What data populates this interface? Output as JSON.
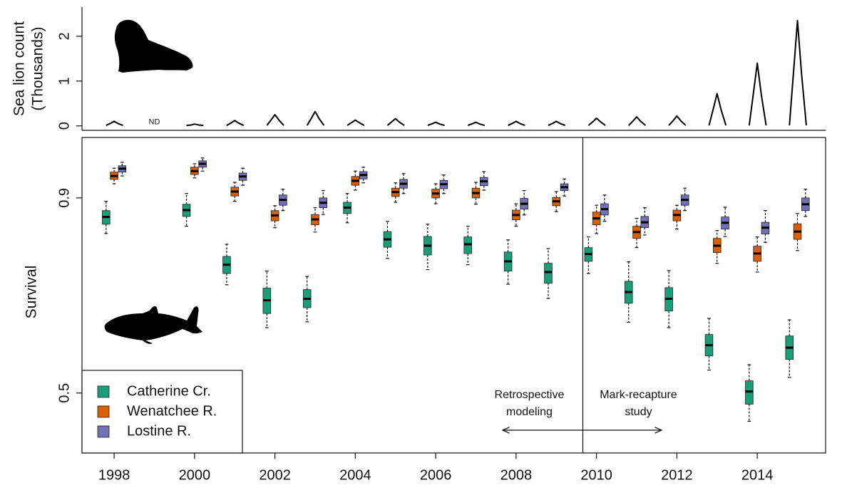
{
  "chart_data": [
    {
      "type": "line",
      "ylabel": [
        "Sea lion count",
        "(Thousands)"
      ],
      "x": [
        1997.8,
        1997.92,
        1998,
        1998.1,
        1998.22,
        1998.5,
        1999.8,
        1999.92,
        2000,
        2000.1,
        2000.22,
        2000.5,
        2000.8,
        2000.92,
        2001,
        2001.1,
        2001.22,
        2001.5,
        2001.8,
        2001.92,
        2002,
        2002.1,
        2002.22,
        2002.5,
        2002.8,
        2002.92,
        2003,
        2003.1,
        2003.22,
        2003.5,
        2003.8,
        2003.92,
        2004,
        2004.1,
        2004.22,
        2004.5,
        2004.8,
        2004.92,
        2005,
        2005.1,
        2005.22,
        2005.5,
        2005.8,
        2005.92,
        2006,
        2006.1,
        2006.22,
        2006.5,
        2006.8,
        2006.92,
        2007,
        2007.1,
        2007.22,
        2007.5,
        2007.8,
        2007.92,
        2008,
        2008.1,
        2008.22,
        2008.5,
        2008.8,
        2008.92,
        2009,
        2009.1,
        2009.22,
        2009.5,
        2009.8,
        2009.92,
        2010,
        2010.1,
        2010.22,
        2010.5,
        2010.8,
        2010.92,
        2011,
        2011.1,
        2011.22,
        2011.5,
        2011.8,
        2011.92,
        2012,
        2012.1,
        2012.22,
        2012.5,
        2012.8,
        2012.92,
        2013,
        2013.1,
        2013.22,
        2013.5,
        2013.8,
        2013.92,
        2014,
        2014.1,
        2014.22,
        2014.5,
        2014.8,
        2014.92,
        2015,
        2015.1,
        2015.22
      ],
      "values": [
        0.01,
        0.06,
        0.1,
        0.05,
        0.01,
        null,
        0.01,
        0.02,
        0.04,
        0.02,
        0.01,
        null,
        0.01,
        0.07,
        0.12,
        0.06,
        0.01,
        null,
        0.01,
        0.15,
        0.25,
        0.13,
        0.01,
        null,
        0.01,
        0.19,
        0.32,
        0.16,
        0.01,
        null,
        0.01,
        0.08,
        0.13,
        0.07,
        0.01,
        null,
        0.01,
        0.1,
        0.16,
        0.08,
        0.01,
        null,
        0.01,
        0.05,
        0.08,
        0.04,
        0.01,
        null,
        0.01,
        0.05,
        0.08,
        0.04,
        0.01,
        null,
        0.01,
        0.06,
        0.1,
        0.05,
        0.01,
        null,
        0.01,
        0.06,
        0.1,
        0.05,
        0.01,
        null,
        0.01,
        0.1,
        0.17,
        0.09,
        0.01,
        null,
        0.01,
        0.12,
        0.2,
        0.1,
        0.01,
        null,
        0.01,
        0.13,
        0.22,
        0.11,
        0.01,
        null,
        0.01,
        0.43,
        0.72,
        0.36,
        0.01,
        null,
        0.01,
        0.84,
        1.4,
        0.7,
        0.01,
        null,
        0.01,
        1.41,
        2.35,
        1.18,
        0.01
      ],
      "color": "#000000",
      "xlim": [
        1997.2,
        2015.7
      ],
      "ylim": [
        -0.1,
        2.65
      ],
      "yticks": [
        0,
        1,
        2
      ],
      "missing": {
        "label": "ND",
        "x": 1999
      }
    },
    {
      "type": "box",
      "ylabel": "Survival",
      "x": [
        1998,
        2000,
        2001,
        2002,
        2003,
        2004,
        2005,
        2006,
        2007,
        2008,
        2009,
        2010,
        2011,
        2012,
        2013,
        2014,
        2015
      ],
      "series": [
        {
          "name": "Catherine Cr.",
          "color": "#1b9e77",
          "median": [
            0.861,
            0.875,
            0.763,
            0.69,
            0.693,
            0.88,
            0.815,
            0.802,
            0.805,
            0.77,
            0.748,
            0.785,
            0.707,
            0.693,
            0.598,
            0.503,
            0.593
          ],
          "q1": [
            0.846,
            0.862,
            0.745,
            0.663,
            0.675,
            0.868,
            0.799,
            0.783,
            0.786,
            0.75,
            0.725,
            0.77,
            0.684,
            0.668,
            0.576,
            0.477,
            0.569
          ],
          "q3": [
            0.874,
            0.887,
            0.78,
            0.715,
            0.712,
            0.891,
            0.831,
            0.821,
            0.82,
            0.789,
            0.766,
            0.798,
            0.729,
            0.716,
            0.62,
            0.525,
            0.617
          ],
          "whisker_low": [
            0.827,
            0.842,
            0.722,
            0.634,
            0.646,
            0.849,
            0.776,
            0.753,
            0.763,
            0.723,
            0.694,
            0.745,
            0.645,
            0.634,
            0.547,
            0.442,
            0.532
          ],
          "whisker_high": [
            0.893,
            0.909,
            0.805,
            0.75,
            0.739,
            0.909,
            0.852,
            0.846,
            0.842,
            0.814,
            0.796,
            0.82,
            0.769,
            0.751,
            0.653,
            0.558,
            0.65
          ]
        },
        {
          "name": "Wenatchee R.",
          "color": "#d95f02",
          "median": [
            0.945,
            0.955,
            0.913,
            0.864,
            0.856,
            0.935,
            0.912,
            0.909,
            0.91,
            0.865,
            0.893,
            0.858,
            0.83,
            0.865,
            0.802,
            0.786,
            0.831
          ],
          "q1": [
            0.938,
            0.948,
            0.904,
            0.853,
            0.845,
            0.926,
            0.903,
            0.9,
            0.9,
            0.855,
            0.884,
            0.845,
            0.817,
            0.853,
            0.788,
            0.77,
            0.815
          ],
          "q3": [
            0.953,
            0.963,
            0.922,
            0.874,
            0.866,
            0.944,
            0.92,
            0.918,
            0.92,
            0.875,
            0.901,
            0.871,
            0.842,
            0.875,
            0.817,
            0.801,
            0.847
          ],
          "whisker_low": [
            0.929,
            0.941,
            0.893,
            0.839,
            0.83,
            0.916,
            0.891,
            0.888,
            0.887,
            0.842,
            0.872,
            0.827,
            0.798,
            0.836,
            0.766,
            0.748,
            0.792
          ],
          "whisker_high": [
            0.961,
            0.97,
            0.932,
            0.884,
            0.88,
            0.955,
            0.931,
            0.929,
            0.932,
            0.888,
            0.913,
            0.885,
            0.858,
            0.885,
            0.833,
            0.82,
            0.868
          ]
        },
        {
          "name": "Lostine R.",
          "color": "#7570b3",
          "median": [
            0.96,
            0.97,
            0.944,
            0.896,
            0.89,
            0.947,
            0.929,
            0.928,
            0.934,
            0.888,
            0.922,
            0.877,
            0.85,
            0.896,
            0.849,
            0.839,
            0.887
          ],
          "q1": [
            0.953,
            0.963,
            0.936,
            0.885,
            0.88,
            0.939,
            0.92,
            0.919,
            0.925,
            0.877,
            0.915,
            0.865,
            0.839,
            0.885,
            0.836,
            0.826,
            0.874
          ],
          "q3": [
            0.966,
            0.976,
            0.951,
            0.906,
            0.9,
            0.954,
            0.938,
            0.936,
            0.942,
            0.899,
            0.929,
            0.888,
            0.862,
            0.906,
            0.861,
            0.85,
            0.9
          ],
          "whisker_low": [
            0.945,
            0.955,
            0.926,
            0.874,
            0.866,
            0.931,
            0.909,
            0.909,
            0.916,
            0.865,
            0.904,
            0.852,
            0.824,
            0.874,
            0.821,
            0.809,
            0.862
          ],
          "whisker_high": [
            0.973,
            0.982,
            0.961,
            0.918,
            0.915,
            0.963,
            0.95,
            0.947,
            0.954,
            0.915,
            0.939,
            0.906,
            0.88,
            0.92,
            0.881,
            0.874,
            0.918
          ]
        }
      ],
      "xlim": [
        1997.2,
        2015.7
      ],
      "xticks": [
        1998,
        2000,
        2002,
        2004,
        2006,
        2008,
        2010,
        2012,
        2014
      ],
      "ylim": [
        0.377,
        1.024
      ],
      "yticks": [
        0.9,
        0.5
      ],
      "legend": "bottom-left",
      "boundary": 2009.66,
      "annotations": [
        {
          "lines": [
            "Retrospective",
            "modeling"
          ]
        },
        {
          "lines": [
            "Mark-recapture",
            "study"
          ]
        }
      ]
    }
  ]
}
